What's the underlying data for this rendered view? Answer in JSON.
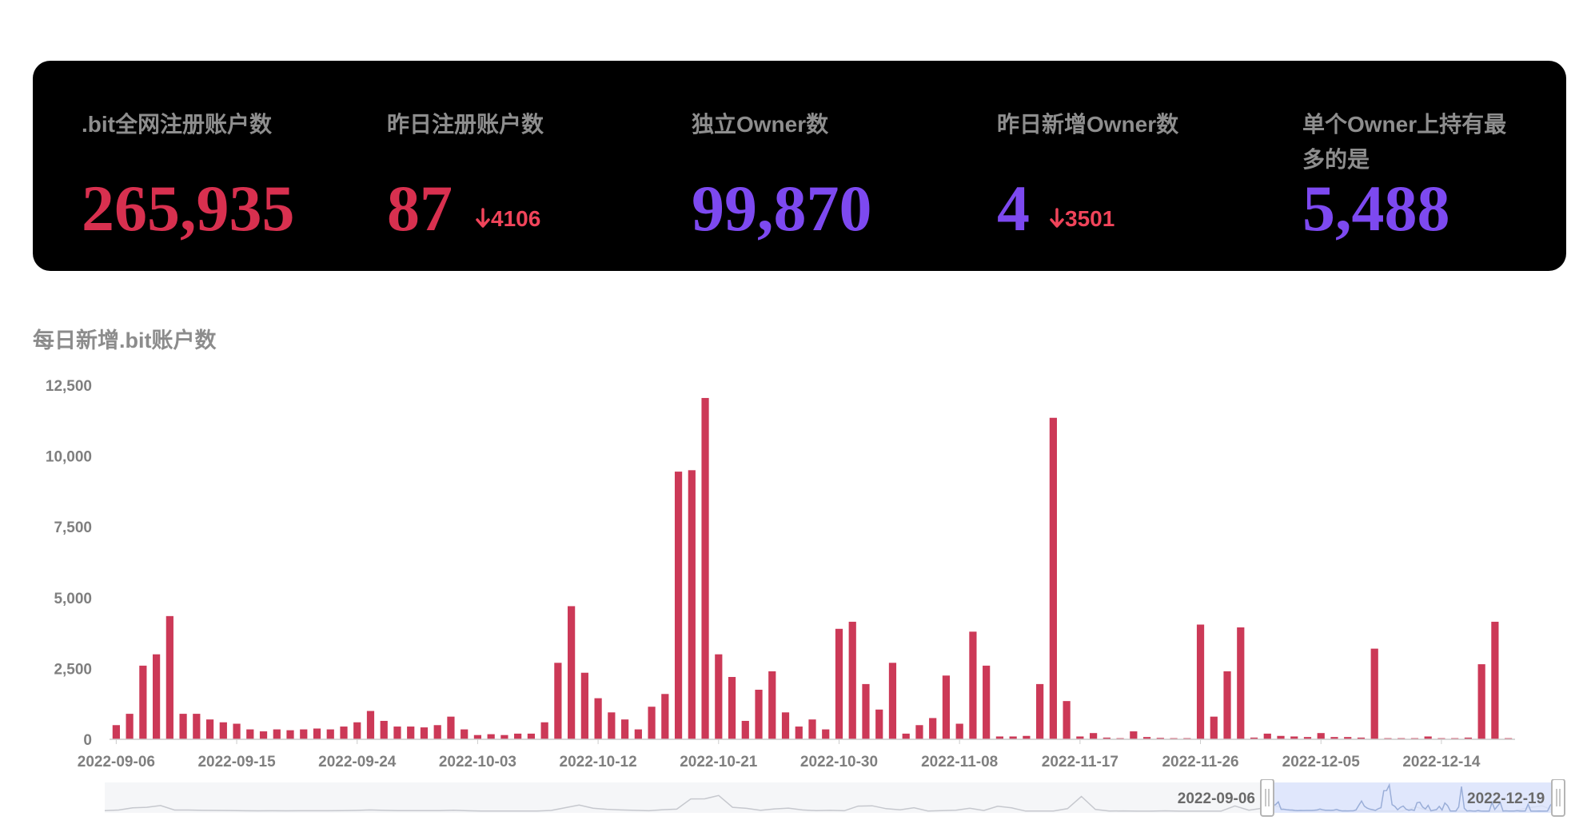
{
  "stats": [
    {
      "label": ".bit全网注册账户数",
      "value": "265,935",
      "color": "#d8304f"
    },
    {
      "label": "昨日注册账户数",
      "value": "87",
      "change": "4106",
      "change_icon": "arrow-down-icon",
      "color": "#d8304f"
    },
    {
      "label": "独立Owner数",
      "value": "99,870",
      "color": "#7d49f0"
    },
    {
      "label": "昨日新增Owner数",
      "value": "4",
      "change": "3501",
      "change_icon": "arrow-down-icon",
      "color": "#7d49f0"
    },
    {
      "label": "单个Owner上持有最多的是",
      "value": "5,488",
      "color": "#7d49f0"
    }
  ],
  "chart_title": "每日新增.bit账户数",
  "chart_data": {
    "type": "bar",
    "title": "每日新增.bit账户数",
    "xlabel": "",
    "ylabel": "",
    "bar_color": "#cc3957",
    "ylim": [
      0,
      12500
    ],
    "yticks": [
      "0",
      "2,500",
      "5,000",
      "7,500",
      "10,000",
      "12,500"
    ],
    "xtick_labels": [
      "2022-09-06",
      "2022-09-15",
      "2022-09-24",
      "2022-10-03",
      "2022-10-12",
      "2022-10-21",
      "2022-10-30",
      "2022-11-08",
      "2022-11-17",
      "2022-11-26",
      "2022-12-05",
      "2022-12-14"
    ],
    "x_start": "2022-09-06",
    "x_end": "2022-12-19",
    "grid": false,
    "legend": "none",
    "values": [
      500,
      900,
      2600,
      3000,
      4350,
      900,
      900,
      700,
      600,
      550,
      350,
      280,
      350,
      320,
      350,
      380,
      350,
      450,
      600,
      1000,
      650,
      450,
      450,
      420,
      500,
      800,
      350,
      150,
      180,
      150,
      200,
      200,
      600,
      2700,
      4700,
      2350,
      1450,
      950,
      700,
      350,
      1150,
      1600,
      9450,
      9500,
      12050,
      3000,
      2200,
      650,
      1750,
      2400,
      950,
      450,
      700,
      350,
      3900,
      4150,
      1950,
      1050,
      2700,
      200,
      500,
      750,
      2250,
      550,
      3800,
      2600,
      100,
      100,
      120,
      1950,
      11350,
      1350,
      100,
      220,
      60,
      40,
      280,
      80,
      50,
      40,
      40,
      4050,
      800,
      2400,
      3950,
      60,
      200,
      120,
      100,
      80,
      220,
      80,
      80,
      60,
      3200,
      40,
      40,
      40,
      100,
      40,
      40,
      60,
      2650,
      4150,
      40
    ]
  },
  "zoom": {
    "start_label": "2022-09-06",
    "end_label": "2022-12-19",
    "handle_icon": "grip-icon",
    "fill_color": "#dbe4fd"
  }
}
